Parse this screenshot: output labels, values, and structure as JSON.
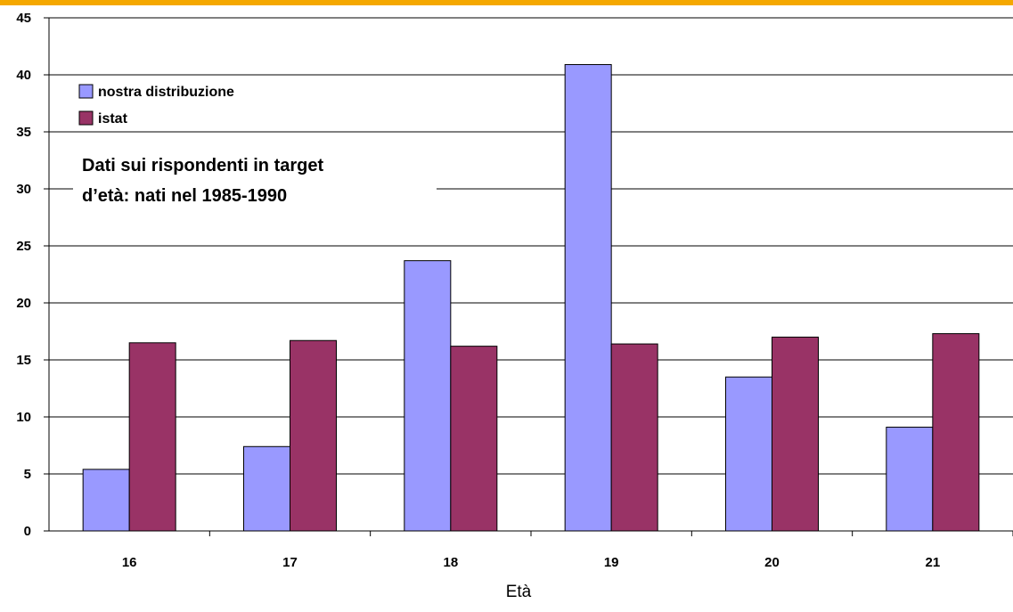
{
  "chart_data": {
    "type": "bar",
    "categories": [
      "16",
      "17",
      "18",
      "19",
      "20",
      "21"
    ],
    "series": [
      {
        "name": "nostra distribuzione",
        "color": "#9999ff",
        "values": [
          5.4,
          7.4,
          23.7,
          40.9,
          13.5,
          9.1
        ]
      },
      {
        "name": "istat",
        "color": "#993366",
        "values": [
          16.5,
          16.7,
          16.2,
          16.4,
          17.0,
          17.3
        ]
      }
    ],
    "title": "",
    "xlabel": "Età",
    "ylabel": "",
    "ylim": [
      0,
      45
    ],
    "yticks": [
      "0",
      "5",
      "10",
      "15",
      "20",
      "25",
      "30",
      "35",
      "40",
      "45"
    ],
    "grid": true,
    "legend_position": "top-left",
    "annotation_lines": [
      "Dati sui rispondenti in target",
      "d’età: nati nel 1985-1990"
    ]
  }
}
